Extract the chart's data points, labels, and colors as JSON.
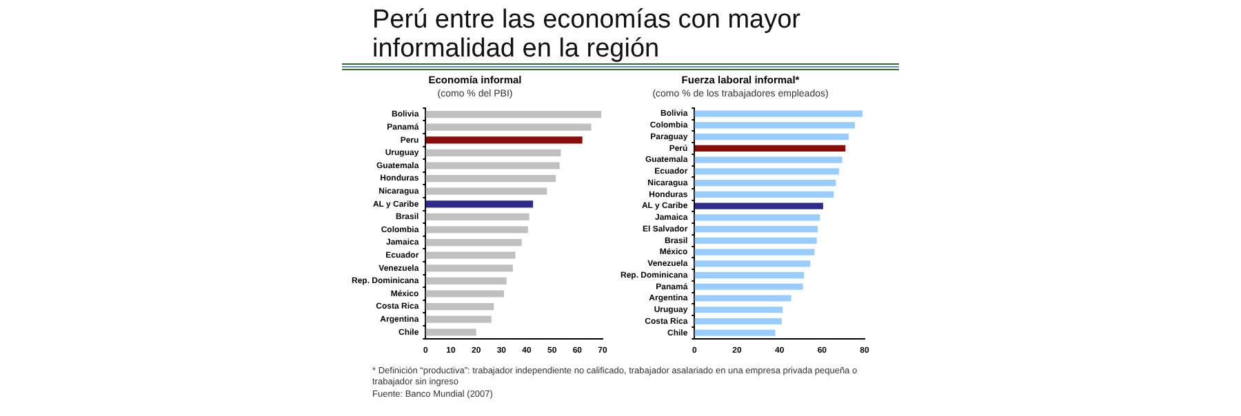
{
  "chart_data": [
    {
      "type": "bar",
      "orientation": "horizontal",
      "title": "Economía informal",
      "subtitle": "(como % del PBI)",
      "categories": [
        "Bolivia",
        "Panamá",
        "Peru",
        "Uruguay",
        "Guatemala",
        "Honduras",
        "Nicaragua",
        "AL y Caribe",
        "Brasil",
        "Colombia",
        "Jamaica",
        "Ecuador",
        "Venezuela",
        "Rep. Dominicana",
        "México",
        "Costa Rica",
        "Argentina",
        "Chile"
      ],
      "values": [
        69.5,
        65.5,
        62,
        53.5,
        53,
        51.5,
        48,
        42.5,
        41,
        40.5,
        38,
        35.5,
        34.5,
        32,
        31,
        27,
        26,
        20
      ],
      "colors": [
        "#c0c0c0",
        "#c0c0c0",
        "#8b0a0a",
        "#c0c0c0",
        "#c0c0c0",
        "#c0c0c0",
        "#c0c0c0",
        "#2e2a8c",
        "#c0c0c0",
        "#c0c0c0",
        "#c0c0c0",
        "#c0c0c0",
        "#c0c0c0",
        "#c0c0c0",
        "#c0c0c0",
        "#c0c0c0",
        "#c0c0c0",
        "#c0c0c0"
      ],
      "xlim": [
        0,
        70
      ],
      "xticks": [
        0,
        10,
        20,
        30,
        40,
        50,
        60,
        70
      ],
      "grid": false,
      "legend": false,
      "annotations": [
        "Perú entre las economías con mayor informalidad en la región"
      ]
    },
    {
      "type": "bar",
      "orientation": "horizontal",
      "title": "Fuerza laboral informal*",
      "subtitle": "(como % de los trabajadores empleados)",
      "categories": [
        "Bolivia",
        "Colombia",
        "Paraguay",
        "Perú",
        "Guatemala",
        "Ecuador",
        "Nicaragua",
        "Honduras",
        "AL y Caribe",
        "Jamaica",
        "El Salvador",
        "Brasil",
        "México",
        "Venezuela",
        "Rep. Dominicana",
        "Panamá",
        "Argentina",
        "Uruguay",
        "Costa Rica",
        "Chile"
      ],
      "values": [
        79,
        75.5,
        72.5,
        71,
        69.5,
        68,
        66.5,
        65.5,
        60.5,
        59,
        58,
        57.5,
        56.5,
        54.5,
        51.5,
        51,
        45.5,
        41.5,
        41,
        38
      ],
      "colors": [
        "#99ccff",
        "#99ccff",
        "#99ccff",
        "#8b0a0a",
        "#99ccff",
        "#99ccff",
        "#99ccff",
        "#99ccff",
        "#2e2a8c",
        "#99ccff",
        "#99ccff",
        "#99ccff",
        "#99ccff",
        "#99ccff",
        "#99ccff",
        "#99ccff",
        "#99ccff",
        "#99ccff",
        "#99ccff",
        "#99ccff"
      ],
      "xlim": [
        0,
        80
      ],
      "xticks": [
        0,
        20,
        40,
        60,
        80
      ],
      "grid": false,
      "legend": false,
      "annotations": [
        "* Definición “productiva”: trabajador independiente no calificado, trabajador asalariado en una empresa privada pequeña o trabajador sin ingreso",
        "Fuente: Banco Mundial (2007)"
      ]
    }
  ]
}
